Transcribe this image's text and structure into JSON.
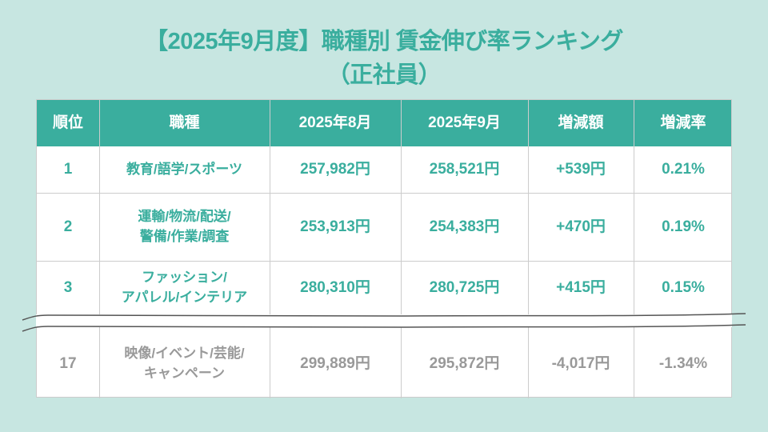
{
  "title": {
    "line1": "【2025年9月度】職種別 賃金伸び率ランキング",
    "line2": "（正社員）"
  },
  "table": {
    "headers": [
      "順位",
      "職種",
      "2025年8月",
      "2025年9月",
      "増減額",
      "増減率"
    ],
    "rows": [
      {
        "rank": "1",
        "job": [
          "教育/語学/スポーツ"
        ],
        "aug": "257,982円",
        "sep": "258,521円",
        "diff": "+539円",
        "rate": "0.21%"
      },
      {
        "rank": "2",
        "job": [
          "運輸/物流/配送/",
          "警備/作業/調査"
        ],
        "aug": "253,913円",
        "sep": "254,383円",
        "diff": "+470円",
        "rate": "0.19%"
      },
      {
        "rank": "3",
        "job": [
          "ファッション/",
          "アパレル/インテリア"
        ],
        "aug": "280,310円",
        "sep": "280,725円",
        "diff": "+415円",
        "rate": "0.15%"
      },
      {
        "rank": "17",
        "job": [
          "映像/イベント/芸能/",
          "キャンペーン"
        ],
        "aug": "299,889円",
        "sep": "295,872円",
        "diff": "-4,017円",
        "rate": "-1.34%"
      }
    ]
  },
  "colors": {
    "background": "#c7e6e1",
    "accent": "#3aae9e",
    "muted": "#999999"
  }
}
